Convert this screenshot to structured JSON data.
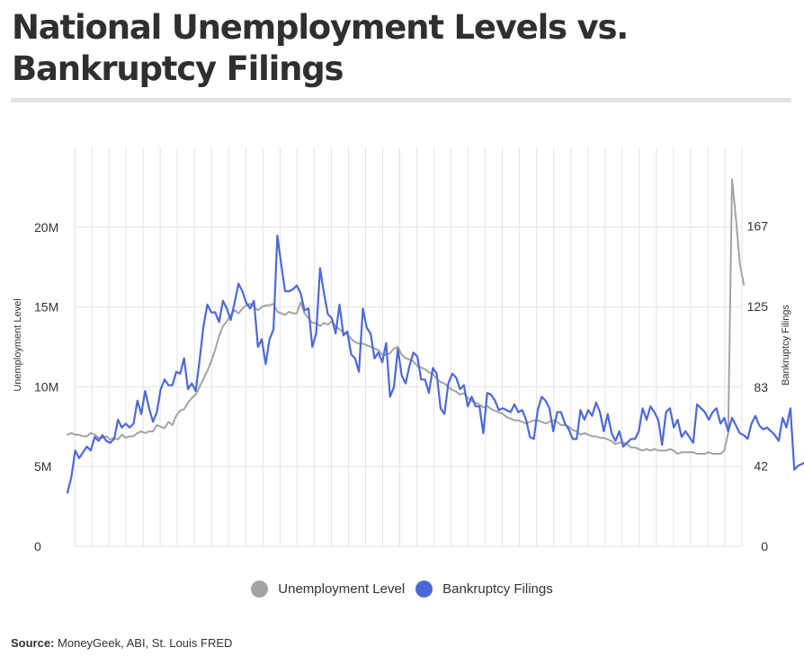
{
  "title": "National Unemployment Levels vs. Bankruptcy Filings",
  "source": {
    "label": "Source:",
    "text": "MoneyGeek, ABI, St. Louis FRED"
  },
  "chart_data": {
    "type": "line",
    "left_axis": {
      "label": "Unemployment Level",
      "ticks": [
        "0",
        "5M",
        "10M",
        "15M",
        "20M"
      ],
      "tick_values": [
        0,
        5,
        10,
        15,
        20
      ],
      "range": [
        0,
        25
      ]
    },
    "right_axis": {
      "label": "Bankruptcy Filings",
      "ticks": [
        "0",
        "42",
        "83",
        "125",
        "167"
      ],
      "tick_values": [
        0,
        42,
        83,
        125,
        167
      ],
      "range": [
        0,
        208
      ]
    },
    "grid": true,
    "legend_placement": "bottom",
    "series": [
      {
        "name": "Unemployment Level",
        "axis": "left",
        "color": "#a3a3a3",
        "values": [
          7.0,
          7.1,
          7.0,
          7.0,
          6.9,
          6.9,
          7.1,
          7.0,
          6.8,
          6.8,
          6.9,
          6.7,
          6.8,
          6.7,
          7.0,
          6.8,
          6.9,
          6.9,
          7.1,
          7.2,
          7.1,
          7.2,
          7.2,
          7.6,
          7.5,
          7.4,
          7.8,
          7.6,
          8.2,
          8.5,
          8.6,
          9.0,
          9.3,
          9.5,
          10.0,
          10.5,
          11.0,
          11.6,
          12.3,
          13.2,
          13.8,
          14.1,
          14.5,
          14.8,
          14.6,
          14.9,
          15.1,
          15.2,
          15.0,
          14.8,
          15.0,
          15.1,
          15.1,
          15.2,
          14.7,
          14.6,
          14.5,
          14.7,
          14.6,
          14.6,
          15.3,
          14.6,
          14.3,
          14.0,
          14.0,
          13.8,
          14.0,
          13.9,
          14.1,
          13.8,
          13.6,
          13.4,
          13.3,
          13.0,
          12.8,
          12.7,
          12.7,
          12.6,
          12.5,
          12.4,
          12.3,
          12.0,
          12.0,
          12.1,
          12.4,
          12.5,
          12.0,
          11.8,
          11.7,
          11.6,
          11.3,
          11.2,
          11.1,
          10.9,
          10.8,
          10.5,
          10.3,
          10.2,
          10.0,
          9.8,
          9.7,
          9.5,
          9.6,
          9.3,
          9.1,
          9.0,
          8.9,
          8.7,
          8.8,
          8.6,
          8.5,
          8.4,
          8.3,
          8.1,
          8.0,
          7.9,
          7.9,
          7.8,
          7.7,
          7.8,
          7.9,
          7.9,
          7.8,
          7.7,
          7.8,
          7.9,
          7.8,
          7.6,
          7.6,
          7.5,
          7.3,
          7.2,
          7.0,
          7.1,
          7.0,
          6.9,
          6.9,
          6.8,
          6.8,
          6.7,
          6.6,
          6.4,
          6.5,
          6.5,
          6.4,
          6.2,
          6.2,
          6.1,
          6.0,
          6.1,
          6.0,
          6.1,
          6.0,
          6.0,
          6.0,
          6.1,
          6.0,
          5.8,
          5.9,
          5.9,
          5.9,
          5.9,
          5.8,
          5.8,
          5.8,
          5.9,
          5.8,
          5.8,
          5.8,
          6.0,
          7.1,
          23.0,
          20.5,
          17.7,
          16.4
        ]
      },
      {
        "name": "Bankruptcy Filings",
        "axis": "right",
        "color": "#4e68d9",
        "values": [
          28,
          36,
          50,
          46,
          49,
          52,
          50,
          57,
          55,
          58,
          55,
          54,
          56,
          66,
          62,
          64,
          62,
          64,
          76,
          69,
          81,
          72,
          65,
          70,
          82,
          87,
          84,
          84,
          91,
          90,
          98,
          82,
          85,
          81,
          97,
          115,
          126,
          122,
          122,
          117,
          128,
          124,
          118,
          127,
          137,
          133,
          127,
          124,
          128,
          104,
          108,
          95,
          108,
          113,
          162,
          147,
          133,
          133,
          134,
          136,
          132,
          123,
          124,
          104,
          111,
          145,
          132,
          121,
          119,
          111,
          126,
          110,
          112,
          100,
          98,
          91,
          124,
          114,
          111,
          98,
          101,
          96,
          106,
          78,
          83,
          103,
          89,
          85,
          94,
          101,
          99,
          87,
          87,
          80,
          93,
          90,
          72,
          69,
          85,
          90,
          88,
          82,
          84,
          73,
          78,
          73,
          73,
          59,
          80,
          79,
          76,
          71,
          72,
          71,
          70,
          74,
          70,
          71,
          66,
          57,
          56,
          71,
          78,
          76,
          72,
          60,
          70,
          70,
          64,
          61,
          56,
          56,
          71,
          66,
          71,
          68,
          75,
          70,
          60,
          69,
          59,
          55,
          60,
          52,
          54,
          56,
          56,
          60,
          72,
          66,
          73,
          70,
          66,
          53,
          70,
          72,
          62,
          66,
          57,
          60,
          57,
          54,
          74,
          72,
          70,
          66,
          70,
          72,
          64,
          67,
          60,
          67,
          63,
          59,
          58,
          56,
          64,
          68,
          63,
          61,
          62,
          60,
          58,
          55,
          67,
          62,
          72,
          40,
          42,
          43,
          44
        ]
      }
    ]
  },
  "legend": [
    {
      "label": "Unemployment Level",
      "color": "#a3a3a3"
    },
    {
      "label": "Bankruptcy Filings",
      "color": "#4e68d9"
    }
  ]
}
